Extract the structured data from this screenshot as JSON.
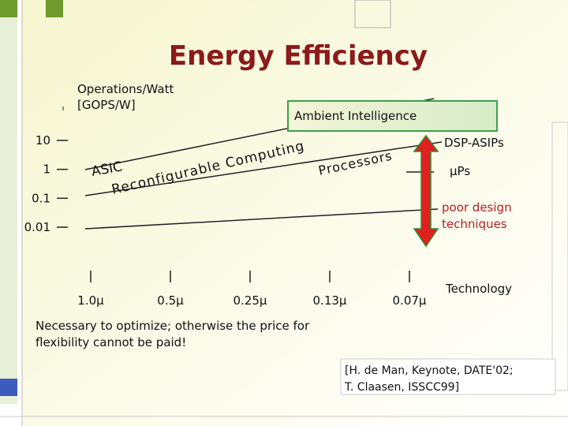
{
  "chart_data": {
    "type": "line",
    "title": "Energy Efficiency",
    "y_label": [
      "Operations/Watt",
      "[GOPS/W]"
    ],
    "log_scale": true,
    "ylim": [
      0.01,
      10
    ],
    "yticks": [
      10,
      1,
      0.1,
      0.01
    ],
    "categories": [
      "1.0µ",
      "0.5µ",
      "0.25µ",
      "0.13µ",
      "0.07µ"
    ],
    "x_label": "Technology",
    "annotations": [
      "Ambient Intelligence",
      "DSP-ASIPs",
      "µPs",
      "ASIC",
      "Reconfigurable Computing",
      "Processors",
      "poor design techniques"
    ]
  },
  "note": [
    "Necessary to optimize; otherwise the price for",
    "flexibility cannot be paid!"
  ],
  "citation": [
    "[H. de Man, Keynote, DATE'02;",
    "T. Claasen, ISSCC99]"
  ]
}
